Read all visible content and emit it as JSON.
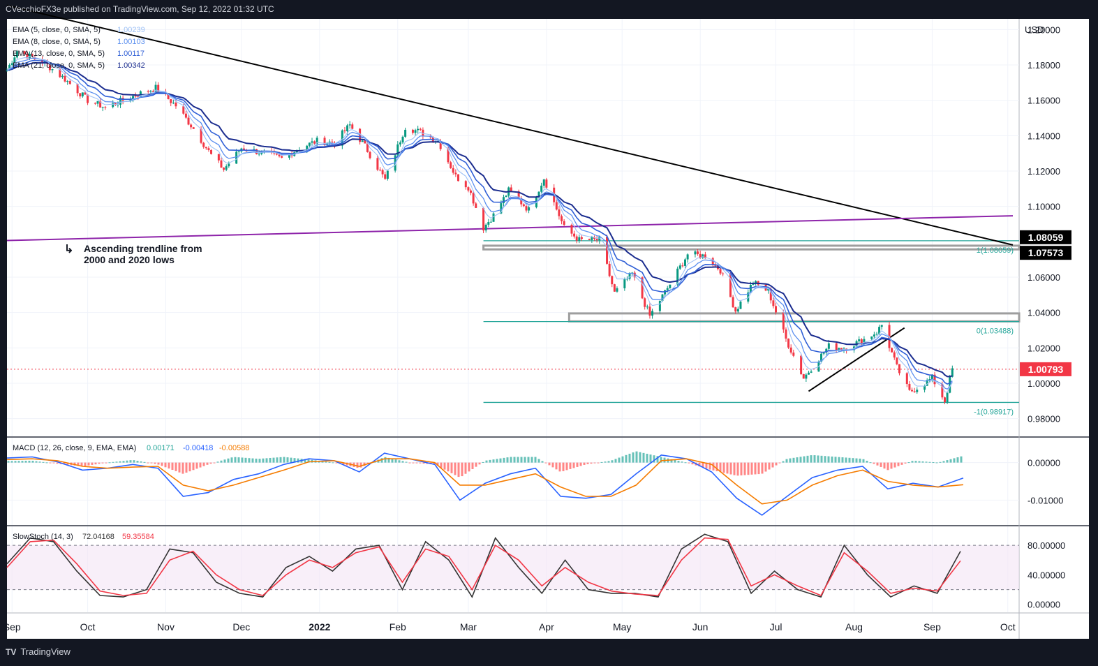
{
  "header": {
    "published": "CVecchioFX3e published on TradingView.com, Sep 12, 2022 01:32 UTC",
    "currency": "USD"
  },
  "footer": {
    "brand": "TradingView",
    "logo_glyph": "TV"
  },
  "colors": {
    "bg": "#131722",
    "panel": "#ffffff",
    "grid": "#f0f3fa",
    "bull": "#089981",
    "bear": "#f23645",
    "ema5": "#9ec1f5",
    "ema8": "#5b8fef",
    "ema13": "#2f5fd6",
    "ema21": "#1b2d8f",
    "macd": "#2962ff",
    "signal": "#f57c00",
    "stochK": "#333333",
    "stochD": "#f23645",
    "downtrend": "#000000",
    "ascending": "#8e24aa",
    "fib": "#26a69a",
    "zone": "#9e9e9e",
    "tag_dark": "#000000",
    "tag_red": "#f23645"
  },
  "annotations": {
    "ascending_arrow": "↳",
    "ascending_text_line1": "Ascending trendline from",
    "ascending_text_line2": "2000 and 2020 lows"
  },
  "chart_data": [
    {
      "type": "candlestick",
      "instrument": "EUR/USD",
      "interval": "daily",
      "ylabel": "USD",
      "ylim": [
        0.97,
        1.21
      ],
      "y_ticks": [
        "1.20000",
        "1.18000",
        "1.16000",
        "1.14000",
        "1.12000",
        "1.10000",
        "1.06000",
        "1.04000",
        "1.02000",
        "1.00000",
        "0.98000"
      ],
      "x_ticks": [
        "Sep",
        "Oct",
        "Nov",
        "Dec",
        "2022",
        "Feb",
        "Mar",
        "Apr",
        "May",
        "Jun",
        "Jul",
        "Aug",
        "Sep",
        "Oct"
      ],
      "legend": [
        {
          "label": "EMA (5, close, 0, SMA, 5)",
          "value": "1.00239",
          "color": "#9ec1f5"
        },
        {
          "label": "EMA (8, close, 0, SMA, 5)",
          "value": "1.00103",
          "color": "#5b8fef"
        },
        {
          "label": "EMA (13, close, 0, SMA, 5)",
          "value": "1.00117",
          "color": "#2f5fd6"
        },
        {
          "label": "EMA (21, close, 0, SMA, 5)",
          "value": "1.00342",
          "color": "#1b2d8f"
        }
      ],
      "price_path": [
        [
          "2021-08-30",
          1.177
        ],
        [
          "2021-09-03",
          1.188
        ],
        [
          "2021-09-14",
          1.181
        ],
        [
          "2021-09-22",
          1.172
        ],
        [
          "2021-10-01",
          1.16
        ],
        [
          "2021-10-08",
          1.156
        ],
        [
          "2021-10-15",
          1.16
        ],
        [
          "2021-10-22",
          1.164
        ],
        [
          "2021-10-28",
          1.167
        ],
        [
          "2021-11-05",
          1.157
        ],
        [
          "2021-11-12",
          1.144
        ],
        [
          "2021-11-19",
          1.129
        ],
        [
          "2021-11-24",
          1.121
        ],
        [
          "2021-12-01",
          1.133
        ],
        [
          "2021-12-10",
          1.13
        ],
        [
          "2021-12-17",
          1.127
        ],
        [
          "2021-12-24",
          1.133
        ],
        [
          "2021-12-31",
          1.137
        ],
        [
          "2022-01-07",
          1.136
        ],
        [
          "2022-01-13",
          1.146
        ],
        [
          "2022-01-19",
          1.134
        ],
        [
          "2022-01-27",
          1.115
        ],
        [
          "2022-02-04",
          1.145
        ],
        [
          "2022-02-10",
          1.142
        ],
        [
          "2022-02-17",
          1.137
        ],
        [
          "2022-02-24",
          1.117
        ],
        [
          "2022-03-01",
          1.111
        ],
        [
          "2022-03-07",
          1.088
        ],
        [
          "2022-03-11",
          1.095
        ],
        [
          "2022-03-17",
          1.109
        ],
        [
          "2022-03-25",
          1.098
        ],
        [
          "2022-03-31",
          1.116
        ],
        [
          "2022-04-08",
          1.088
        ],
        [
          "2022-04-14",
          1.081
        ],
        [
          "2022-04-22",
          1.081
        ],
        [
          "2022-04-28",
          1.051
        ],
        [
          "2022-05-05",
          1.062
        ],
        [
          "2022-05-12",
          1.038
        ],
        [
          "2022-05-20",
          1.056
        ],
        [
          "2022-05-27",
          1.073
        ],
        [
          "2022-06-03",
          1.072
        ],
        [
          "2022-06-09",
          1.064
        ],
        [
          "2022-06-15",
          1.041
        ],
        [
          "2022-06-22",
          1.057
        ],
        [
          "2022-06-28",
          1.052
        ],
        [
          "2022-07-05",
          1.025
        ],
        [
          "2022-07-12",
          1.003
        ],
        [
          "2022-07-18",
          1.014
        ],
        [
          "2022-07-22",
          1.021
        ],
        [
          "2022-07-28",
          1.02
        ],
        [
          "2022-08-04",
          1.024
        ],
        [
          "2022-08-10",
          1.029
        ],
        [
          "2022-08-12",
          1.033
        ],
        [
          "2022-08-18",
          1.009
        ],
        [
          "2022-08-23",
          0.995
        ],
        [
          "2022-08-29",
          1.0
        ],
        [
          "2022-09-01",
          1.003
        ],
        [
          "2022-09-06",
          0.99
        ],
        [
          "2022-09-09",
          1.008
        ]
      ],
      "last_price": "1.00793",
      "levels": {
        "tag_1": "1.08059",
        "tag_2": "1.07573",
        "fib_1_label": "1(1.08059)",
        "fib_0_label": "0(1.03488)",
        "fib_m1_label": "-1(0.98917)",
        "fib_1": 1.08059,
        "fib_0": 1.03488,
        "fib_m1": 0.98917,
        "zone_upper": [
          1.0757,
          1.0778
        ],
        "zone_lower": [
          1.035,
          1.0395
        ]
      },
      "trendlines": {
        "downtrend": [
          [
            "2021-08-30",
            1.2137
          ],
          [
            "2022-10-03",
            1.0782
          ]
        ],
        "ascending": [
          [
            "2021-08-30",
            1.0807
          ],
          [
            "2022-10-03",
            1.0947
          ]
        ],
        "rising_support": [
          [
            "2022-07-14",
            0.9955
          ],
          [
            "2022-08-21",
            1.0313
          ]
        ]
      }
    },
    {
      "type": "line",
      "title": "MACD (12, 26, close, 9, EMA, EMA)",
      "values_shown": [
        "0.00171",
        "-0.00418",
        "-0.00588"
      ],
      "y_ticks": [
        "0.00000",
        "-0.01000"
      ],
      "ylim": [
        -0.0155,
        0.0055
      ],
      "series": [
        {
          "name": "MACD",
          "values": [
            0.0012,
            0.0015,
            0.0002,
            -0.002,
            -0.0015,
            -0.0005,
            -0.0015,
            -0.009,
            -0.008,
            -0.0045,
            -0.003,
            -0.0005,
            0.001,
            0.0005,
            -0.0025,
            0.0025,
            0.001,
            -0.0005,
            -0.01,
            -0.0055,
            -0.003,
            -0.0015,
            -0.009,
            -0.0095,
            -0.0085,
            -0.003,
            0.002,
            0.001,
            -0.0025,
            -0.0095,
            -0.014,
            -0.009,
            -0.004,
            -0.002,
            -0.001,
            -0.007,
            -0.0055,
            -0.0065,
            -0.0041
          ]
        },
        {
          "name": "Signal",
          "values": [
            0.0008,
            0.001,
            0.0005,
            -0.001,
            -0.0015,
            -0.0012,
            -0.001,
            -0.006,
            -0.0075,
            -0.006,
            -0.004,
            -0.002,
            0.0002,
            0.0005,
            -0.001,
            0.001,
            0.001,
            0.0,
            -0.006,
            -0.006,
            -0.0045,
            -0.003,
            -0.0065,
            -0.009,
            -0.009,
            -0.006,
            0.0005,
            0.001,
            -0.0005,
            -0.006,
            -0.011,
            -0.01,
            -0.006,
            -0.0035,
            -0.002,
            -0.005,
            -0.006,
            -0.0065,
            -0.0059
          ]
        }
      ]
    },
    {
      "type": "line",
      "title": "SlowStoch (14, 3)",
      "values_shown": [
        "72.04168",
        "59.35584"
      ],
      "y_ticks": [
        "80.00000",
        "40.00000",
        "0.00000"
      ],
      "ylim": [
        -5,
        100
      ],
      "bands": [
        20,
        80
      ],
      "series": [
        {
          "name": "%K",
          "values": [
            55,
            90,
            85,
            45,
            12,
            10,
            20,
            75,
            70,
            30,
            15,
            10,
            50,
            65,
            45,
            75,
            80,
            20,
            85,
            60,
            10,
            90,
            50,
            15,
            60,
            20,
            15,
            15,
            10,
            75,
            95,
            85,
            15,
            45,
            20,
            10,
            80,
            40,
            10,
            25,
            15,
            72
          ]
        },
        {
          "name": "%D",
          "values": [
            50,
            85,
            87,
            55,
            18,
            12,
            15,
            60,
            72,
            40,
            20,
            12,
            40,
            60,
            50,
            70,
            78,
            30,
            75,
            65,
            20,
            80,
            60,
            25,
            50,
            30,
            18,
            14,
            12,
            60,
            90,
            88,
            25,
            40,
            25,
            12,
            70,
            45,
            15,
            22,
            18,
            59
          ]
        }
      ]
    }
  ]
}
